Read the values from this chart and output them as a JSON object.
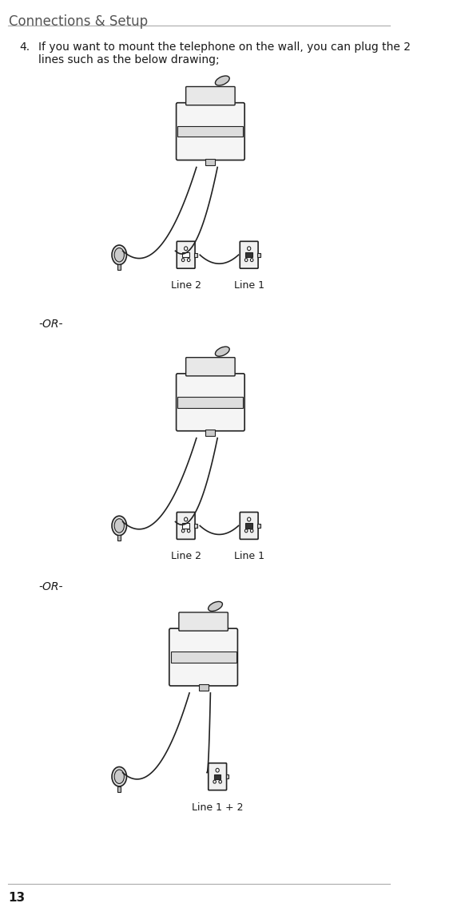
{
  "title": "Connections & Setup",
  "page_number": "13",
  "item_number": "4.",
  "item_text": "If you want to mount the telephone on the wall, you can plug the 2\nlines such as the below drawing;",
  "or_text": "-OR-",
  "line1_label": "Line 1",
  "line2_label": "Line 2",
  "line12_label": "Line 1 + 2",
  "bg_color": "#ffffff",
  "text_color": "#1a1a1a",
  "header_color": "#555555",
  "diagram_color": "#222222",
  "header_line_color": "#aaaaaa",
  "footer_line_color": "#aaaaaa"
}
